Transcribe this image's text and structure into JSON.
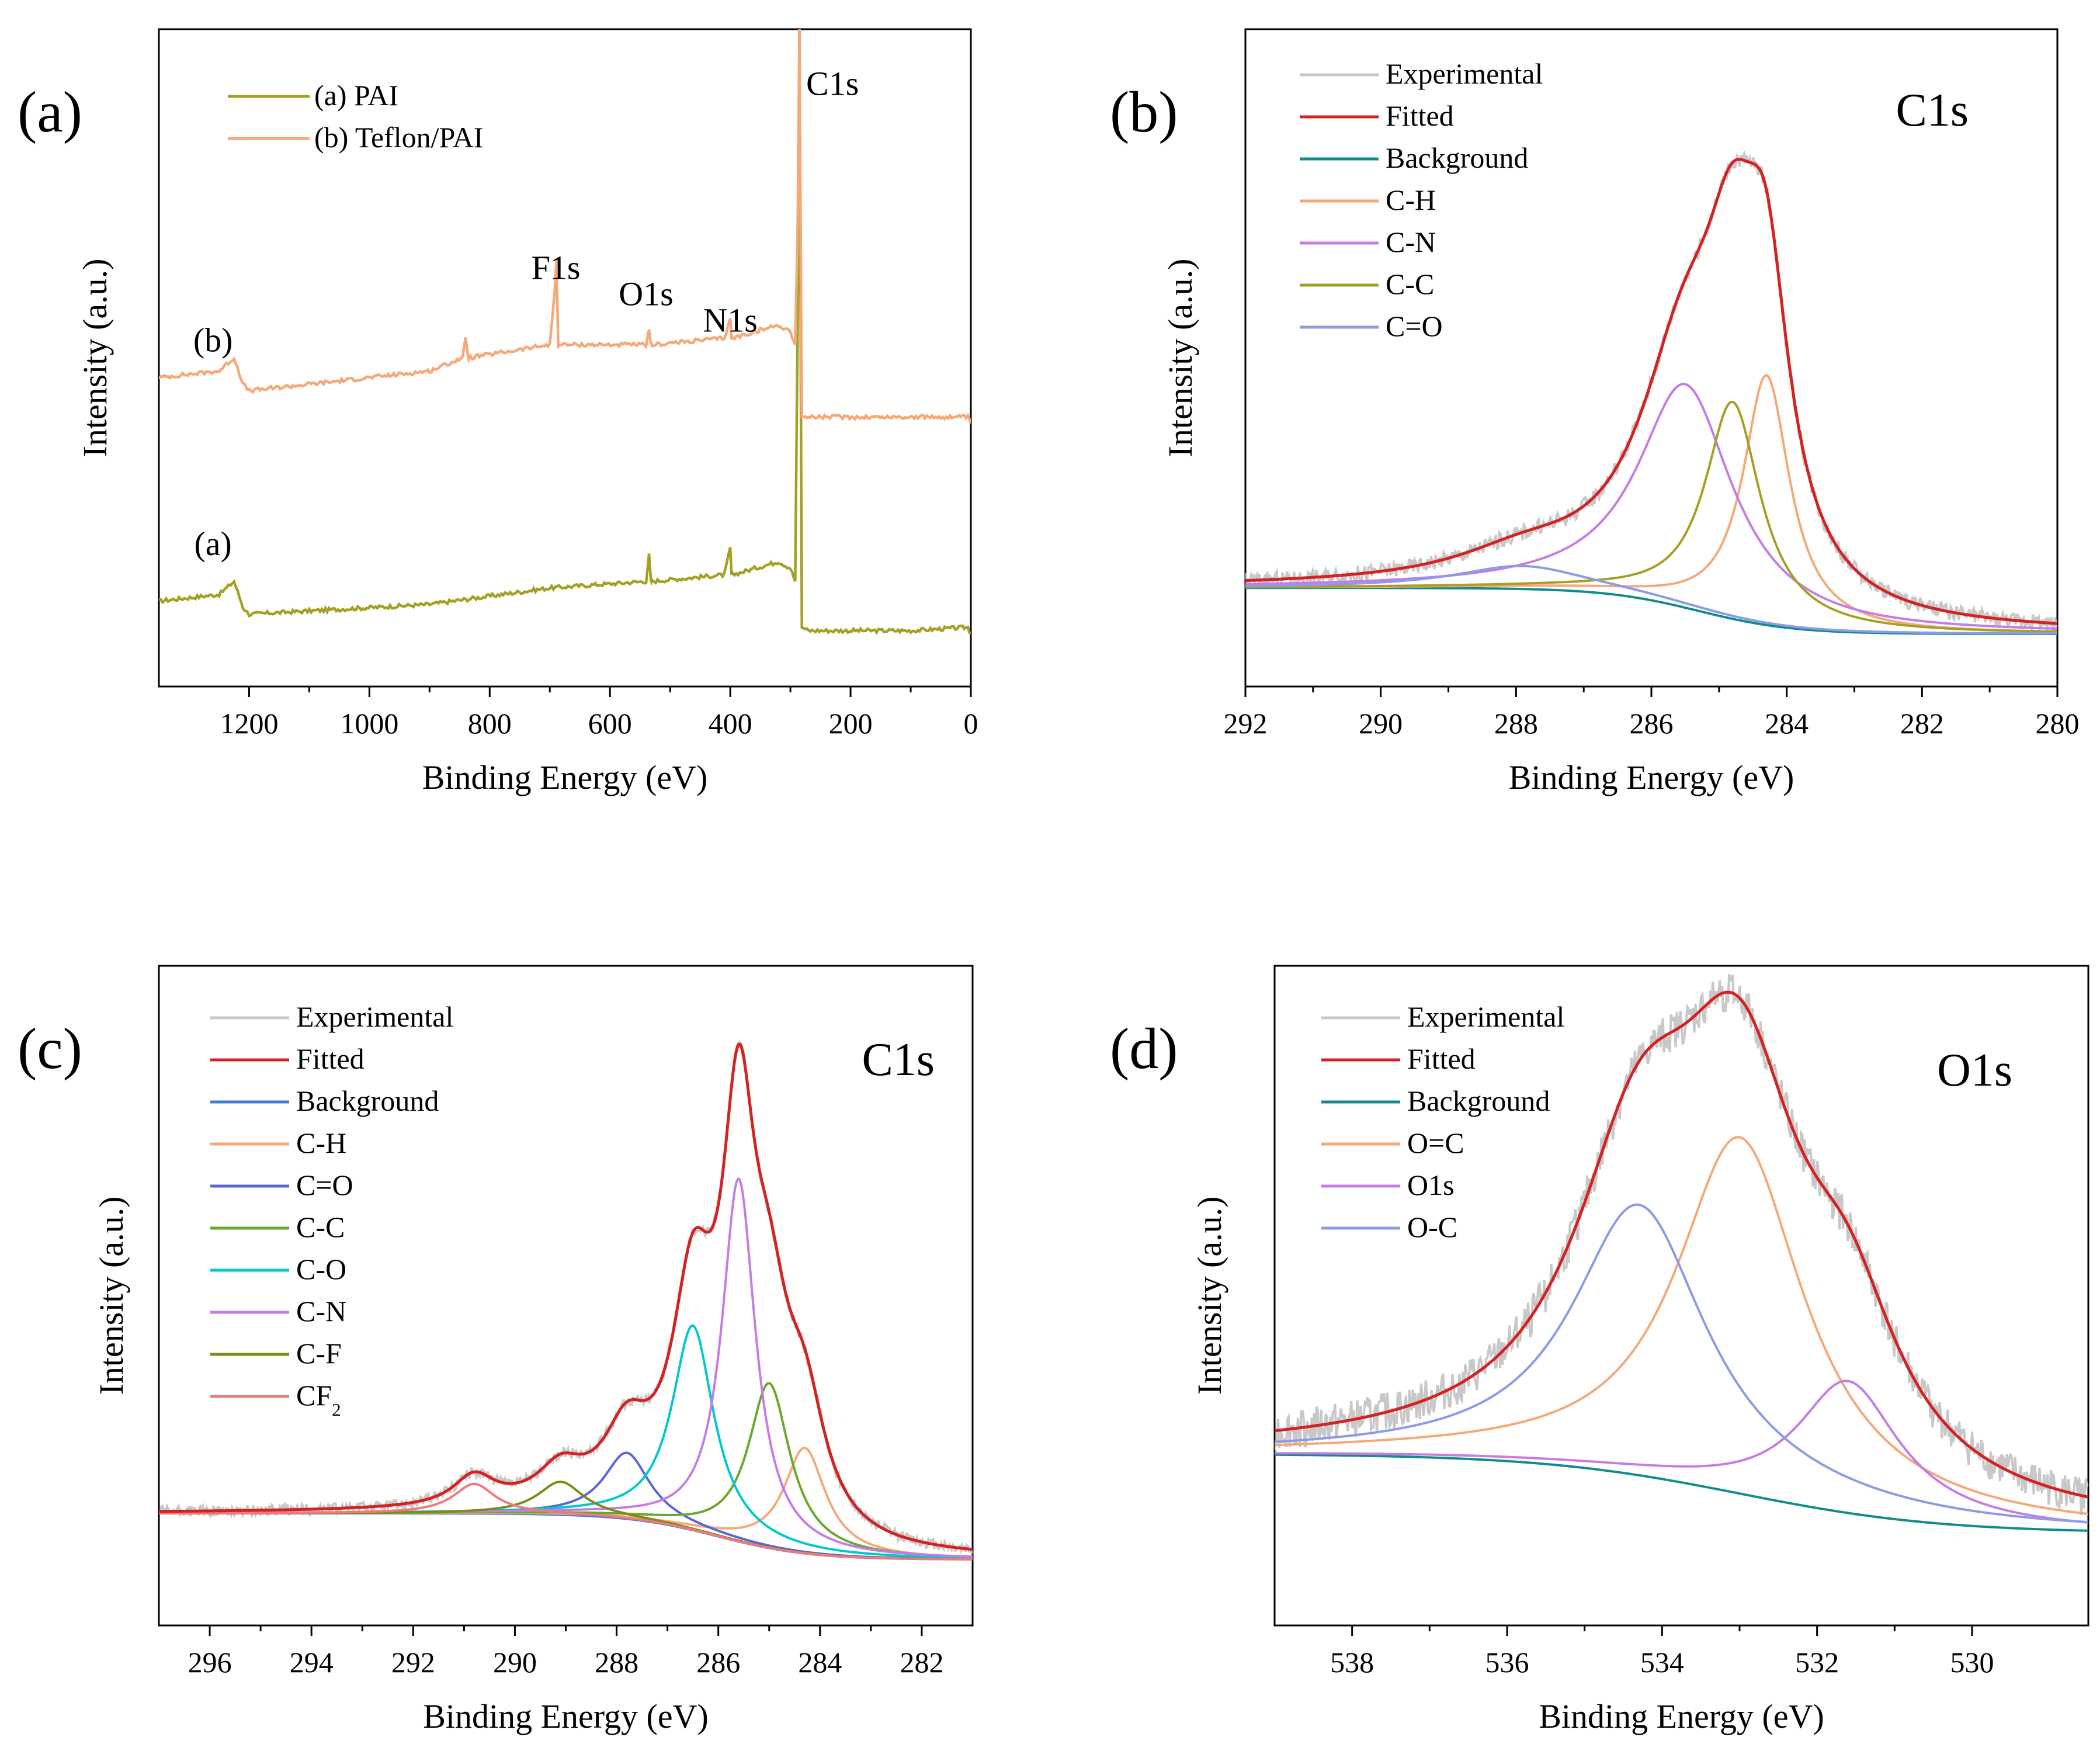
{
  "chart_data": [
    {
      "type": "line",
      "panel_label": "(a)",
      "xlabel": "Binding Energy (eV)",
      "ylabel": "Intensity (a.u.)",
      "xlim": [
        1350,
        0
      ],
      "ylim": [
        0,
        100
      ],
      "xticks": [
        "1200",
        "1000",
        "800",
        "600",
        "400",
        "200",
        "0"
      ],
      "xtick_values": [
        1200,
        1000,
        800,
        600,
        400,
        200,
        0
      ],
      "legend": [
        {
          "name": "(a) PAI",
          "color": "#a5a023"
        },
        {
          "name": "(b) Teflon/PAI",
          "color": "#f5a878"
        }
      ],
      "curve_labels": [
        {
          "text": "(b)",
          "x": 1260,
          "y": 51
        },
        {
          "text": "(a)",
          "x": 1260,
          "y": 20
        }
      ],
      "annotations": [
        {
          "text": "C1s",
          "x": 230,
          "y": 90
        },
        {
          "text": "F1s",
          "x": 690,
          "y": 62
        },
        {
          "text": "O1s",
          "x": 540,
          "y": 58
        },
        {
          "text": "N1s",
          "x": 400,
          "y": 54
        }
      ],
      "series": [
        {
          "name": "(a) PAI",
          "color": "#a5a023",
          "x": [
            1350,
            1250,
            1225,
            1210,
            1200,
            1100,
            900,
            700,
            540,
            535,
            532,
            530,
            410,
            400,
            398,
            396,
            320,
            300,
            292,
            288,
            285,
            283,
            281,
            270,
            100,
            5,
            0
          ],
          "y": [
            13,
            14,
            16,
            12,
            11,
            11.5,
            12.5,
            15,
            16,
            20,
            16,
            16,
            17,
            21,
            17,
            17,
            19,
            18,
            16,
            55,
            100,
            55,
            9,
            8.5,
            8.5,
            9,
            8
          ]
        },
        {
          "name": "(b) Teflon/PAI",
          "color": "#f5a878",
          "x": [
            1350,
            1250,
            1225,
            1210,
            1200,
            1100,
            900,
            845,
            840,
            835,
            700,
            692,
            689,
            686,
            540,
            535,
            532,
            530,
            410,
            400,
            398,
            396,
            320,
            300,
            292,
            288,
            285,
            283,
            281,
            270,
            100,
            5,
            0
          ],
          "y": [
            47,
            48,
            50,
            46,
            45,
            46,
            48,
            50,
            53,
            50,
            52,
            60,
            65,
            52,
            52,
            54,
            52,
            52,
            53,
            56,
            53,
            53,
            55,
            54,
            52,
            70,
            100,
            70,
            41,
            41,
            41,
            41,
            40
          ]
        }
      ]
    },
    {
      "type": "line",
      "panel_label": "(b)",
      "peak_label": "C1s",
      "xlabel": "Binding Energy (eV)",
      "ylabel": "Intensity (a.u.)",
      "xlim": [
        292,
        280
      ],
      "ylim": [
        0,
        100
      ],
      "xticks": [
        "292",
        "290",
        "288",
        "286",
        "284",
        "282",
        "280"
      ],
      "xtick_values": [
        292,
        290,
        288,
        286,
        284,
        282,
        280
      ],
      "legend": [
        {
          "name": "Experimental",
          "color": "#c8c8c8"
        },
        {
          "name": "Fitted",
          "color": "#d42121"
        },
        {
          "name": "Background",
          "color": "#108c8c"
        },
        {
          "name": "C-H",
          "color": "#f5a878"
        },
        {
          "name": "C-N",
          "color": "#c57ce6"
        },
        {
          "name": "C-C",
          "color": "#a5a023"
        },
        {
          "name": "C=O",
          "color": "#8c9be6"
        }
      ],
      "background": {
        "high": 15,
        "low": 8,
        "center": 285.3,
        "width": 0.7
      },
      "components": [
        {
          "name": "C-H",
          "color": "#f5a878",
          "center": 284.3,
          "amplitude": 38,
          "width": 0.42
        },
        {
          "name": "C-N",
          "color": "#c57ce6",
          "center": 285.5,
          "amplitude": 34,
          "width": 0.85
        },
        {
          "name": "C-C",
          "color": "#a5a023",
          "center": 284.8,
          "amplitude": 33,
          "width": 0.5
        },
        {
          "name": "C=O",
          "color": "#8c9be6",
          "center": 287.9,
          "amplitude": 3.5,
          "width": 1.2
        }
      ],
      "noise": 1.2
    },
    {
      "type": "line",
      "panel_label": "(c)",
      "peak_label": "C1s",
      "xlabel": "Binding Energy (eV)",
      "ylabel": "Intensity (a.u.)",
      "xlim": [
        297,
        281
      ],
      "ylim": [
        0,
        100
      ],
      "xticks": [
        "296",
        "294",
        "292",
        "290",
        "288",
        "286",
        "284",
        "282"
      ],
      "xtick_values": [
        296,
        294,
        292,
        290,
        288,
        286,
        284,
        282
      ],
      "legend": [
        {
          "name": "Experimental",
          "color": "#c8c8c8"
        },
        {
          "name": "Fitted",
          "color": "#d42121"
        },
        {
          "name": "Background",
          "color": "#3b7dd8"
        },
        {
          "name": "C-H",
          "color": "#f5a878"
        },
        {
          "name": "C=O",
          "color": "#5a66d6"
        },
        {
          "name": "C-C",
          "color": "#6aa82d"
        },
        {
          "name": "C-O",
          "color": "#00c8d0"
        },
        {
          "name": "C-N",
          "color": "#c57ce6"
        },
        {
          "name": "C-F",
          "color": "#7a8c1a"
        },
        {
          "name": "CF2",
          "color": "#f07a7a"
        }
      ],
      "background": {
        "high": 17,
        "low": 10,
        "center": 286.0,
        "width": 0.9
      },
      "components": [
        {
          "name": "C-H",
          "color": "#f5a878",
          "center": 284.3,
          "amplitude": 16,
          "width": 0.5
        },
        {
          "name": "C=O",
          "color": "#5a66d6",
          "center": 287.8,
          "amplitude": 10,
          "width": 0.55
        },
        {
          "name": "C-C",
          "color": "#6aa82d",
          "center": 285.0,
          "amplitude": 25,
          "width": 0.5
        },
        {
          "name": "C-O",
          "color": "#00c8d0",
          "center": 286.5,
          "amplitude": 31,
          "width": 0.5
        },
        {
          "name": "C-N",
          "color": "#c57ce6",
          "center": 285.6,
          "amplitude": 55,
          "width": 0.4
        },
        {
          "name": "C-F",
          "color": "#7a8c1a",
          "center": 289.1,
          "amplitude": 5,
          "width": 0.55
        },
        {
          "name": "CF2",
          "color": "#f07a7a",
          "center": 290.8,
          "amplitude": 4.5,
          "width": 0.5
        }
      ],
      "noise": 0.8
    },
    {
      "type": "line",
      "panel_label": "(d)",
      "peak_label": "O1s",
      "xlabel": "Binding Energy (eV)",
      "ylabel": "Intensity (a.u.)",
      "xlim": [
        539,
        528.5
      ],
      "ylim": [
        0,
        100
      ],
      "xticks": [
        "538",
        "536",
        "534",
        "532",
        "530"
      ],
      "xtick_values": [
        538,
        536,
        534,
        532,
        530
      ],
      "legend": [
        {
          "name": "Experimental",
          "color": "#c8c8c8"
        },
        {
          "name": "Fitted",
          "color": "#d42121"
        },
        {
          "name": "Background",
          "color": "#108c8c"
        },
        {
          "name": "O=C",
          "color": "#f5a878"
        },
        {
          "name": "O1s",
          "color": "#c57ce6"
        },
        {
          "name": "O-C",
          "color": "#8c9be6"
        }
      ],
      "background": {
        "high": 26,
        "low": 14,
        "center": 533.0,
        "width": 1.3
      },
      "components": [
        {
          "name": "O=C",
          "color": "#f5a878",
          "center": 533.0,
          "amplitude": 54,
          "width": 1.0
        },
        {
          "name": "O1s",
          "color": "#c57ce6",
          "center": 531.6,
          "amplitude": 20,
          "width": 0.8
        },
        {
          "name": "O-C",
          "color": "#8c9be6",
          "center": 534.3,
          "amplitude": 41,
          "width": 1.05
        }
      ],
      "noise": 3.0
    }
  ]
}
